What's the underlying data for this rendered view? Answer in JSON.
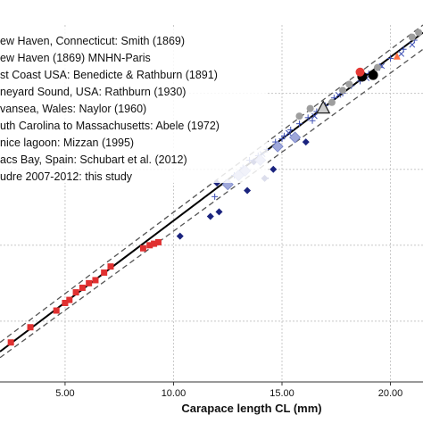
{
  "chart_data": {
    "type": "scatter",
    "title": "",
    "xlabel": "Carapace length CL (mm)",
    "ylabel": "",
    "xlim": [
      2.0,
      21.5
    ],
    "ylim": [
      1.0,
      24.5
    ],
    "x_ticks": [
      5.0,
      10.0,
      15.0,
      20.0
    ],
    "x_tick_labels": [
      "5.00",
      "10.00",
      "15.00",
      "20.00"
    ],
    "y_gridlines": [
      5.0,
      10.0,
      15.0,
      20.0
    ],
    "grid": true,
    "legend_position": "top-left",
    "legend": [
      "ew Haven, Connecticut: Smith (1869)",
      "ew Haven (1869) MNHN-Paris",
      "st Coast USA: Benedicte & Rathburn (1891)",
      "neyard Sound, USA: Rathburn (1930)",
      "vansea, Wales: Naylor (1960)",
      "uth Carolina to Massachusetts: Abele (1972)",
      "nice lagoon: Mizzan (1995)",
      "acs Bay, Spain: Schubart et al. (2012)",
      "udre 2007-2012: this study"
    ],
    "lines": [
      {
        "name": "",
        "style": "solid",
        "color": "#000000",
        "width": 2,
        "points": [
          [
            2.0,
            3.0
          ],
          [
            21.5,
            24.0
          ]
        ]
      },
      {
        "name": "",
        "style": "dashed",
        "color": "#555555",
        "width": 1.3,
        "points": [
          [
            2.0,
            3.6
          ],
          [
            21.5,
            24.5
          ]
        ]
      },
      {
        "name": "",
        "style": "dashed",
        "color": "#555555",
        "width": 1.3,
        "points": [
          [
            2.0,
            2.6
          ],
          [
            21.5,
            22.9
          ]
        ]
      }
    ],
    "series": [
      {
        "marker": "square",
        "color": "#e03030",
        "points": [
          [
            2.5,
            3.6
          ],
          [
            3.4,
            4.6
          ],
          [
            4.6,
            5.7
          ],
          [
            5.0,
            6.2
          ],
          [
            5.2,
            6.4
          ],
          [
            5.5,
            6.9
          ],
          [
            5.8,
            7.2
          ],
          [
            6.1,
            7.5
          ],
          [
            6.4,
            7.7
          ],
          [
            6.8,
            8.2
          ],
          [
            7.1,
            8.6
          ],
          [
            8.6,
            9.8
          ],
          [
            8.9,
            10.0
          ],
          [
            9.1,
            10.1
          ],
          [
            9.3,
            10.2
          ]
        ]
      },
      {
        "marker": "diamond",
        "color": "#1a237e",
        "points": [
          [
            10.3,
            10.6
          ],
          [
            11.7,
            11.9
          ],
          [
            12.1,
            12.2
          ],
          [
            13.4,
            13.6
          ],
          [
            14.2,
            14.4
          ],
          [
            14.6,
            15.0
          ],
          [
            16.1,
            16.8
          ],
          [
            13.7,
            15.5
          ],
          [
            12.0,
            14.1
          ]
        ]
      },
      {
        "marker": "plus",
        "color": "#3f51b5",
        "points": [
          [
            11.9,
            13.2
          ],
          [
            12.4,
            14.1
          ],
          [
            12.8,
            14.6
          ],
          [
            13.2,
            15.1
          ],
          [
            13.5,
            15.6
          ],
          [
            13.9,
            15.9
          ],
          [
            14.3,
            16.3
          ],
          [
            14.7,
            16.8
          ],
          [
            15.1,
            17.2
          ],
          [
            15.4,
            17.6
          ],
          [
            15.8,
            18.0
          ],
          [
            16.2,
            18.4
          ],
          [
            16.6,
            18.8
          ],
          [
            17.0,
            19.2
          ],
          [
            17.4,
            19.7
          ],
          [
            17.8,
            20.0
          ],
          [
            18.2,
            20.5
          ],
          [
            18.6,
            20.8
          ],
          [
            19.0,
            21.3
          ],
          [
            19.5,
            21.7
          ],
          [
            20.0,
            22.3
          ],
          [
            20.6,
            22.9
          ],
          [
            21.1,
            23.5
          ],
          [
            15.0,
            17.0
          ],
          [
            16.4,
            18.2
          ]
        ]
      },
      {
        "marker": "x",
        "color": "#3f51b5",
        "points": [
          [
            14.1,
            16.0
          ],
          [
            15.3,
            17.4
          ],
          [
            16.5,
            18.5
          ],
          [
            17.6,
            19.9
          ],
          [
            18.9,
            21.0
          ],
          [
            19.6,
            21.8
          ],
          [
            20.5,
            22.6
          ],
          [
            21.0,
            23.2
          ]
        ]
      },
      {
        "marker": "diamond-light",
        "color": "#9fa8da",
        "points": [
          [
            12.5,
            14.0
          ],
          [
            13.3,
            14.9
          ],
          [
            14.0,
            15.6
          ],
          [
            14.8,
            16.5
          ],
          [
            13.0,
            14.6
          ],
          [
            15.6,
            17.1
          ]
        ]
      },
      {
        "marker": "circle",
        "color": "#9e9e9e",
        "points": [
          [
            15.8,
            18.5
          ],
          [
            16.3,
            19.0
          ],
          [
            17.3,
            19.4
          ],
          [
            18.1,
            20.6
          ],
          [
            19.4,
            21.7
          ],
          [
            21.0,
            23.7
          ],
          [
            21.3,
            24.0
          ],
          [
            17.8,
            20.2
          ]
        ]
      },
      {
        "marker": "circle-black",
        "color": "#000000",
        "points": [
          [
            18.7,
            21.1
          ],
          [
            19.2,
            21.2
          ]
        ]
      },
      {
        "marker": "circle-red",
        "color": "#e53935",
        "points": [
          [
            18.6,
            21.4
          ]
        ]
      },
      {
        "marker": "triangle",
        "color": "#ff7043",
        "points": [
          [
            20.3,
            22.4
          ]
        ]
      },
      {
        "marker": "triangle-big",
        "color": "#cccccc",
        "points": [
          [
            16.9,
            19.0
          ]
        ]
      }
    ]
  }
}
